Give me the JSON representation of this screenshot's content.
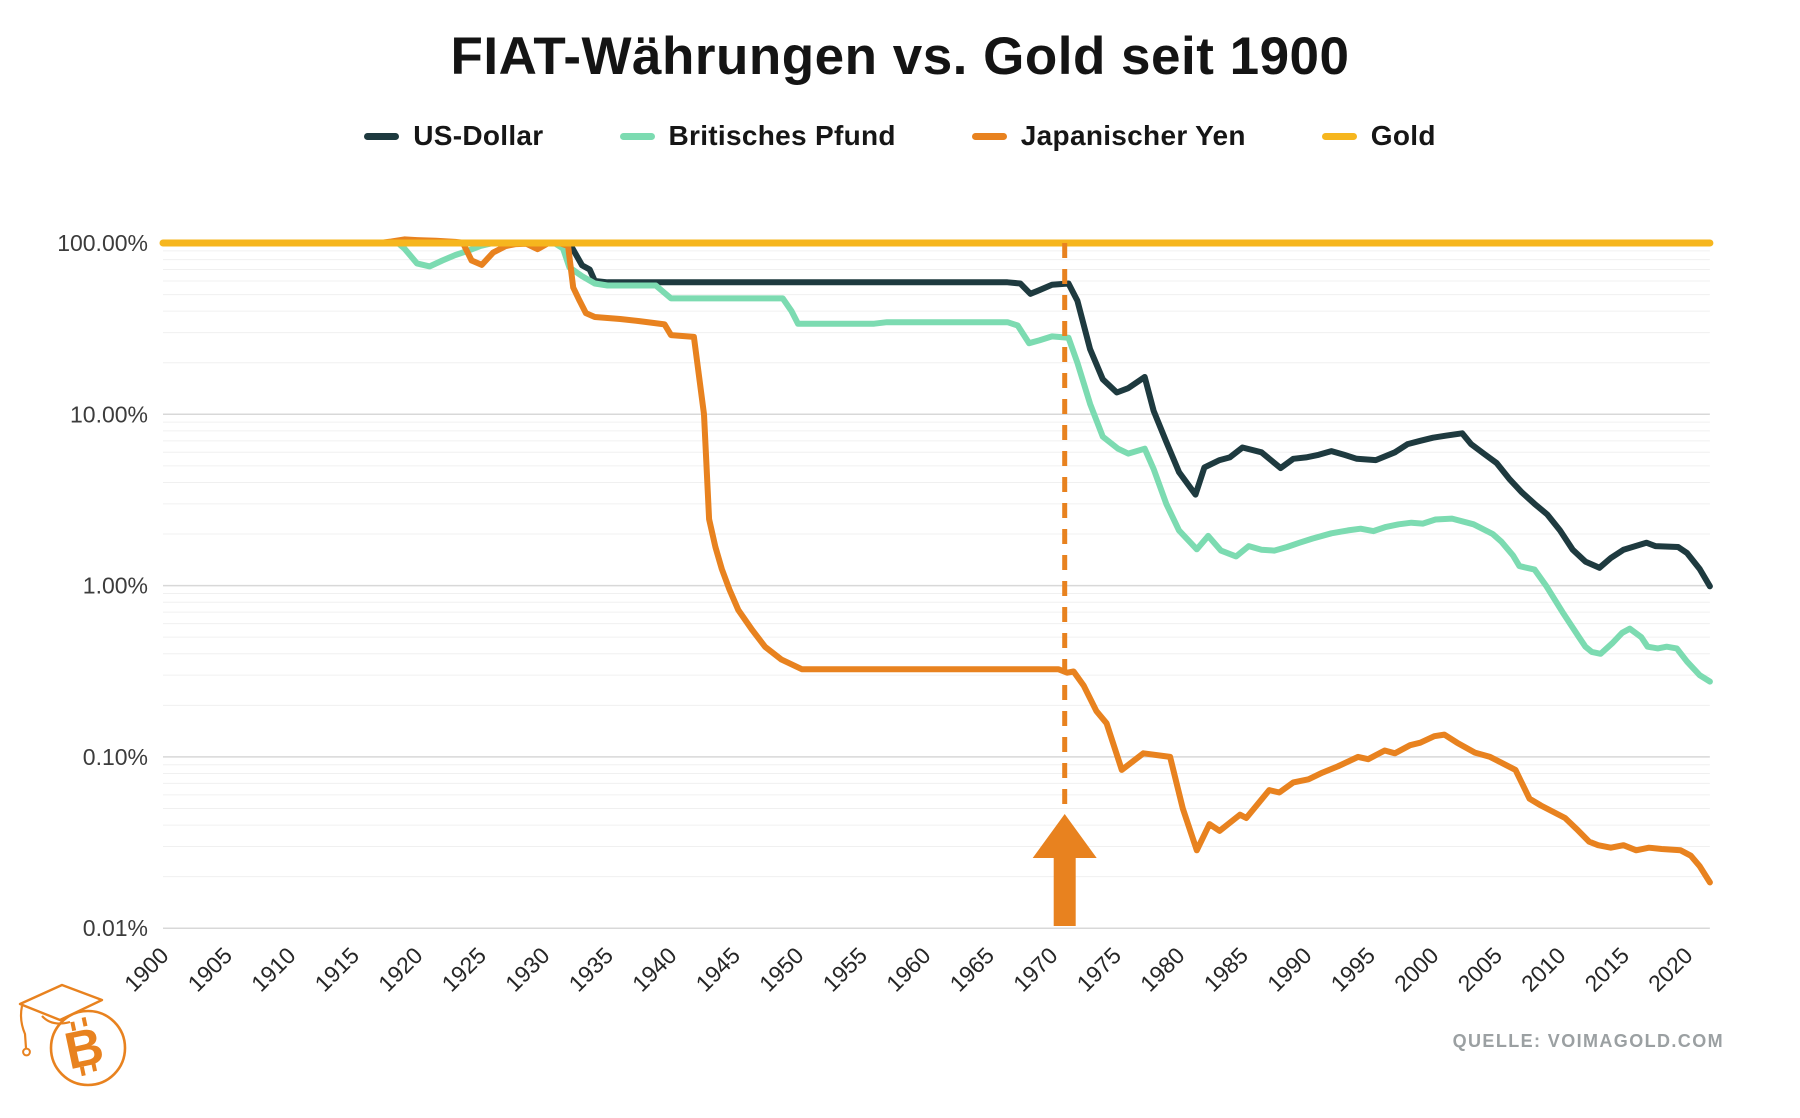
{
  "header": {
    "title": "FIAT-Währungen vs. Gold seit 1900"
  },
  "source": {
    "label": "QUELLE: VOIMAGOLD.COM"
  },
  "logo": {
    "name": "bitcoin-graduation-cap-logo",
    "color": "#E8821F",
    "symbol": "B"
  },
  "colors": {
    "usd": "#1E3A3F",
    "gbp": "#7CDBB1",
    "jpy": "#E8821F",
    "gold": "#F6B61E",
    "grid_major": "#d8d8d8",
    "grid_minor": "#f0f0f0",
    "axis_label": "#3c3c3c",
    "annotation": "#E8821F"
  },
  "chart_data": {
    "type": "line",
    "title": "FIAT-Währungen vs. Gold seit 1900",
    "y_scale": "log",
    "ylim": [
      0.01,
      120
    ],
    "x_range": [
      1900,
      2021.8
    ],
    "grid": "horizontal-log-with-minors",
    "legend_position": "top",
    "y_ticks": [
      {
        "label": "100.00%",
        "value": 100
      },
      {
        "label": "10.00%",
        "value": 10
      },
      {
        "label": "1.00%",
        "value": 1
      },
      {
        "label": "0.10%",
        "value": 0.1
      },
      {
        "label": "0.01%",
        "value": 0.01
      }
    ],
    "x_ticks": [
      "1900",
      "1905",
      "1910",
      "1915",
      "1920",
      "1925",
      "1930",
      "1935",
      "1940",
      "1945",
      "1950",
      "1955",
      "1960",
      "1965",
      "1970",
      "1975",
      "1980",
      "1985",
      "1990",
      "1995",
      "2000",
      "2005",
      "2010",
      "2015",
      "2020"
    ],
    "annotation": {
      "kind": "vertical-dashed-line-with-up-arrow",
      "year": 1971,
      "color": "#E8821F"
    },
    "series": [
      {
        "name": "US-Dollar",
        "color": "#1E3A3F",
        "points": [
          [
            1900,
            100
          ],
          [
            1932,
            100
          ],
          [
            1933,
            74
          ],
          [
            1933.6,
            70
          ],
          [
            1934,
            60
          ],
          [
            1935,
            59
          ],
          [
            1966.5,
            59
          ],
          [
            1967.5,
            58
          ],
          [
            1968.3,
            50.5
          ],
          [
            1969,
            53
          ],
          [
            1970,
            57
          ],
          [
            1971.3,
            58
          ],
          [
            1972,
            46
          ],
          [
            1973,
            24
          ],
          [
            1974,
            16
          ],
          [
            1975.1,
            13.4
          ],
          [
            1976,
            14.2
          ],
          [
            1977.3,
            16.5
          ],
          [
            1978,
            10.5
          ],
          [
            1979,
            6.9
          ],
          [
            1980,
            4.6
          ],
          [
            1981.3,
            3.4
          ],
          [
            1982,
            4.9
          ],
          [
            1983.2,
            5.4
          ],
          [
            1984,
            5.6
          ],
          [
            1985,
            6.4
          ],
          [
            1986.5,
            6.0
          ],
          [
            1988,
            4.85
          ],
          [
            1989,
            5.5
          ],
          [
            1990,
            5.6
          ],
          [
            1991,
            5.8
          ],
          [
            1992,
            6.1
          ],
          [
            1993,
            5.8
          ],
          [
            1994,
            5.5
          ],
          [
            1995.5,
            5.4
          ],
          [
            1997,
            6.0
          ],
          [
            1998,
            6.7
          ],
          [
            1999,
            7.0
          ],
          [
            2000,
            7.3
          ],
          [
            2001,
            7.5
          ],
          [
            2002.3,
            7.75
          ],
          [
            2003,
            6.7
          ],
          [
            2004,
            5.9
          ],
          [
            2005,
            5.2
          ],
          [
            2006,
            4.2
          ],
          [
            2007,
            3.5
          ],
          [
            2008,
            3.0
          ],
          [
            2009,
            2.6
          ],
          [
            2010,
            2.1
          ],
          [
            2011,
            1.62
          ],
          [
            2012,
            1.38
          ],
          [
            2013.1,
            1.27
          ],
          [
            2014,
            1.45
          ],
          [
            2015,
            1.62
          ],
          [
            2016.8,
            1.78
          ],
          [
            2017.5,
            1.7
          ],
          [
            2019.3,
            1.68
          ],
          [
            2020,
            1.55
          ],
          [
            2021,
            1.25
          ],
          [
            2021.8,
            0.99
          ]
        ]
      },
      {
        "name": "Britisches Pfund",
        "color": "#7CDBB1",
        "points": [
          [
            1900,
            100
          ],
          [
            1918.5,
            100
          ],
          [
            1919,
            93
          ],
          [
            1920,
            76
          ],
          [
            1921,
            73
          ],
          [
            1922,
            79
          ],
          [
            1923,
            85
          ],
          [
            1924,
            90
          ],
          [
            1925,
            96
          ],
          [
            1926,
            100
          ],
          [
            1930.8,
            100
          ],
          [
            1931.5,
            93
          ],
          [
            1932,
            72
          ],
          [
            1933,
            64
          ],
          [
            1934,
            58
          ],
          [
            1935,
            56.5
          ],
          [
            1938.8,
            56.5
          ],
          [
            1940,
            47.5
          ],
          [
            1948.8,
            47.5
          ],
          [
            1949.5,
            40
          ],
          [
            1950,
            33.8
          ],
          [
            1956,
            33.8
          ],
          [
            1957,
            34.5
          ],
          [
            1966.5,
            34.5
          ],
          [
            1967.3,
            33
          ],
          [
            1968.2,
            26
          ],
          [
            1969,
            27
          ],
          [
            1970,
            28.5
          ],
          [
            1971.3,
            28
          ],
          [
            1972,
            20
          ],
          [
            1973,
            11.5
          ],
          [
            1974,
            7.4
          ],
          [
            1975.2,
            6.3
          ],
          [
            1976,
            5.9
          ],
          [
            1977.3,
            6.3
          ],
          [
            1978,
            4.8
          ],
          [
            1979,
            3.0
          ],
          [
            1980,
            2.1
          ],
          [
            1981.4,
            1.63
          ],
          [
            1982.3,
            1.95
          ],
          [
            1983.3,
            1.6
          ],
          [
            1984.5,
            1.48
          ],
          [
            1985.5,
            1.7
          ],
          [
            1986.5,
            1.62
          ],
          [
            1987.5,
            1.6
          ],
          [
            1988.5,
            1.68
          ],
          [
            1989.5,
            1.78
          ],
          [
            1990.5,
            1.88
          ],
          [
            1992,
            2.02
          ],
          [
            1993.3,
            2.1
          ],
          [
            1994.3,
            2.15
          ],
          [
            1995.3,
            2.08
          ],
          [
            1996.3,
            2.2
          ],
          [
            1997.3,
            2.28
          ],
          [
            1998.3,
            2.33
          ],
          [
            1999.2,
            2.3
          ],
          [
            2000.2,
            2.43
          ],
          [
            2001.5,
            2.46
          ],
          [
            2003.2,
            2.28
          ],
          [
            2004.7,
            2.0
          ],
          [
            2005.4,
            1.8
          ],
          [
            2006.3,
            1.5
          ],
          [
            2006.8,
            1.3
          ],
          [
            2008,
            1.24
          ],
          [
            2008.9,
            1.0
          ],
          [
            2010.2,
            0.7
          ],
          [
            2011.5,
            0.5
          ],
          [
            2012,
            0.44
          ],
          [
            2012.5,
            0.41
          ],
          [
            2013.2,
            0.4
          ],
          [
            2014.1,
            0.46
          ],
          [
            2014.9,
            0.53
          ],
          [
            2015.5,
            0.56
          ],
          [
            2016.4,
            0.5
          ],
          [
            2016.9,
            0.44
          ],
          [
            2017.7,
            0.43
          ],
          [
            2018.4,
            0.44
          ],
          [
            2019.2,
            0.43
          ],
          [
            2020,
            0.36
          ],
          [
            2021,
            0.3
          ],
          [
            2021.8,
            0.275
          ]
        ]
      },
      {
        "name": "Japanischer Yen",
        "color": "#E8821F",
        "points": [
          [
            1900,
            100
          ],
          [
            1917,
            100
          ],
          [
            1918,
            102
          ],
          [
            1919,
            105
          ],
          [
            1920,
            104
          ],
          [
            1921.5,
            103
          ],
          [
            1923,
            101.5
          ],
          [
            1923.6,
            100.5
          ],
          [
            1924.3,
            79
          ],
          [
            1925.1,
            74.5
          ],
          [
            1926,
            88
          ],
          [
            1927,
            96
          ],
          [
            1927.8,
            98.5
          ],
          [
            1928.6,
            99
          ],
          [
            1929.5,
            92
          ],
          [
            1930.3,
            99.5
          ],
          [
            1931.3,
            99.5
          ],
          [
            1931.9,
            96
          ],
          [
            1932.3,
            55
          ],
          [
            1932.8,
            46
          ],
          [
            1933.3,
            39
          ],
          [
            1934,
            37
          ],
          [
            1935,
            36.5
          ],
          [
            1936,
            36
          ],
          [
            1937.5,
            35
          ],
          [
            1939.5,
            33.5
          ],
          [
            1940,
            29
          ],
          [
            1941.8,
            28.3
          ],
          [
            1942.6,
            10
          ],
          [
            1943,
            2.44
          ],
          [
            1943.5,
            1.68
          ],
          [
            1944,
            1.25
          ],
          [
            1944.6,
            0.95
          ],
          [
            1945.3,
            0.72
          ],
          [
            1946.4,
            0.55
          ],
          [
            1947.4,
            0.44
          ],
          [
            1948.7,
            0.37
          ],
          [
            1950.3,
            0.325
          ],
          [
            1970.5,
            0.325
          ],
          [
            1971.2,
            0.31
          ],
          [
            1971.7,
            0.315
          ],
          [
            1972.5,
            0.26
          ],
          [
            1973.5,
            0.185
          ],
          [
            1974.3,
            0.157
          ],
          [
            1975.5,
            0.084
          ],
          [
            1977.2,
            0.105
          ],
          [
            1979.3,
            0.1
          ],
          [
            1980.3,
            0.05
          ],
          [
            1981.4,
            0.0285
          ],
          [
            1982.4,
            0.0405
          ],
          [
            1983.2,
            0.037
          ],
          [
            1984.8,
            0.046
          ],
          [
            1985.3,
            0.044
          ],
          [
            1987.1,
            0.064
          ],
          [
            1987.9,
            0.062
          ],
          [
            1989,
            0.071
          ],
          [
            1990.2,
            0.074
          ],
          [
            1991.3,
            0.081
          ],
          [
            1992.5,
            0.088
          ],
          [
            1994.1,
            0.1
          ],
          [
            1994.9,
            0.097
          ],
          [
            1996.2,
            0.109
          ],
          [
            1997,
            0.105
          ],
          [
            1998.2,
            0.117
          ],
          [
            1999,
            0.121
          ],
          [
            2000.1,
            0.132
          ],
          [
            2000.9,
            0.135
          ],
          [
            2001.9,
            0.121
          ],
          [
            2003.3,
            0.106
          ],
          [
            2004.5,
            0.1
          ],
          [
            2006.5,
            0.084
          ],
          [
            2007.6,
            0.057
          ],
          [
            2008.5,
            0.052
          ],
          [
            2010.4,
            0.044
          ],
          [
            2011.3,
            0.038
          ],
          [
            2012.3,
            0.032
          ],
          [
            2013,
            0.0305
          ],
          [
            2014,
            0.0295
          ],
          [
            2015,
            0.0305
          ],
          [
            2016,
            0.0285
          ],
          [
            2017,
            0.0295
          ],
          [
            2018,
            0.029
          ],
          [
            2019.5,
            0.0285
          ],
          [
            2020.3,
            0.0265
          ],
          [
            2021,
            0.023
          ],
          [
            2021.8,
            0.0185
          ]
        ]
      },
      {
        "name": "Gold",
        "color": "#F6B61E",
        "points": [
          [
            1900,
            100
          ],
          [
            2021.8,
            100
          ]
        ]
      }
    ]
  }
}
